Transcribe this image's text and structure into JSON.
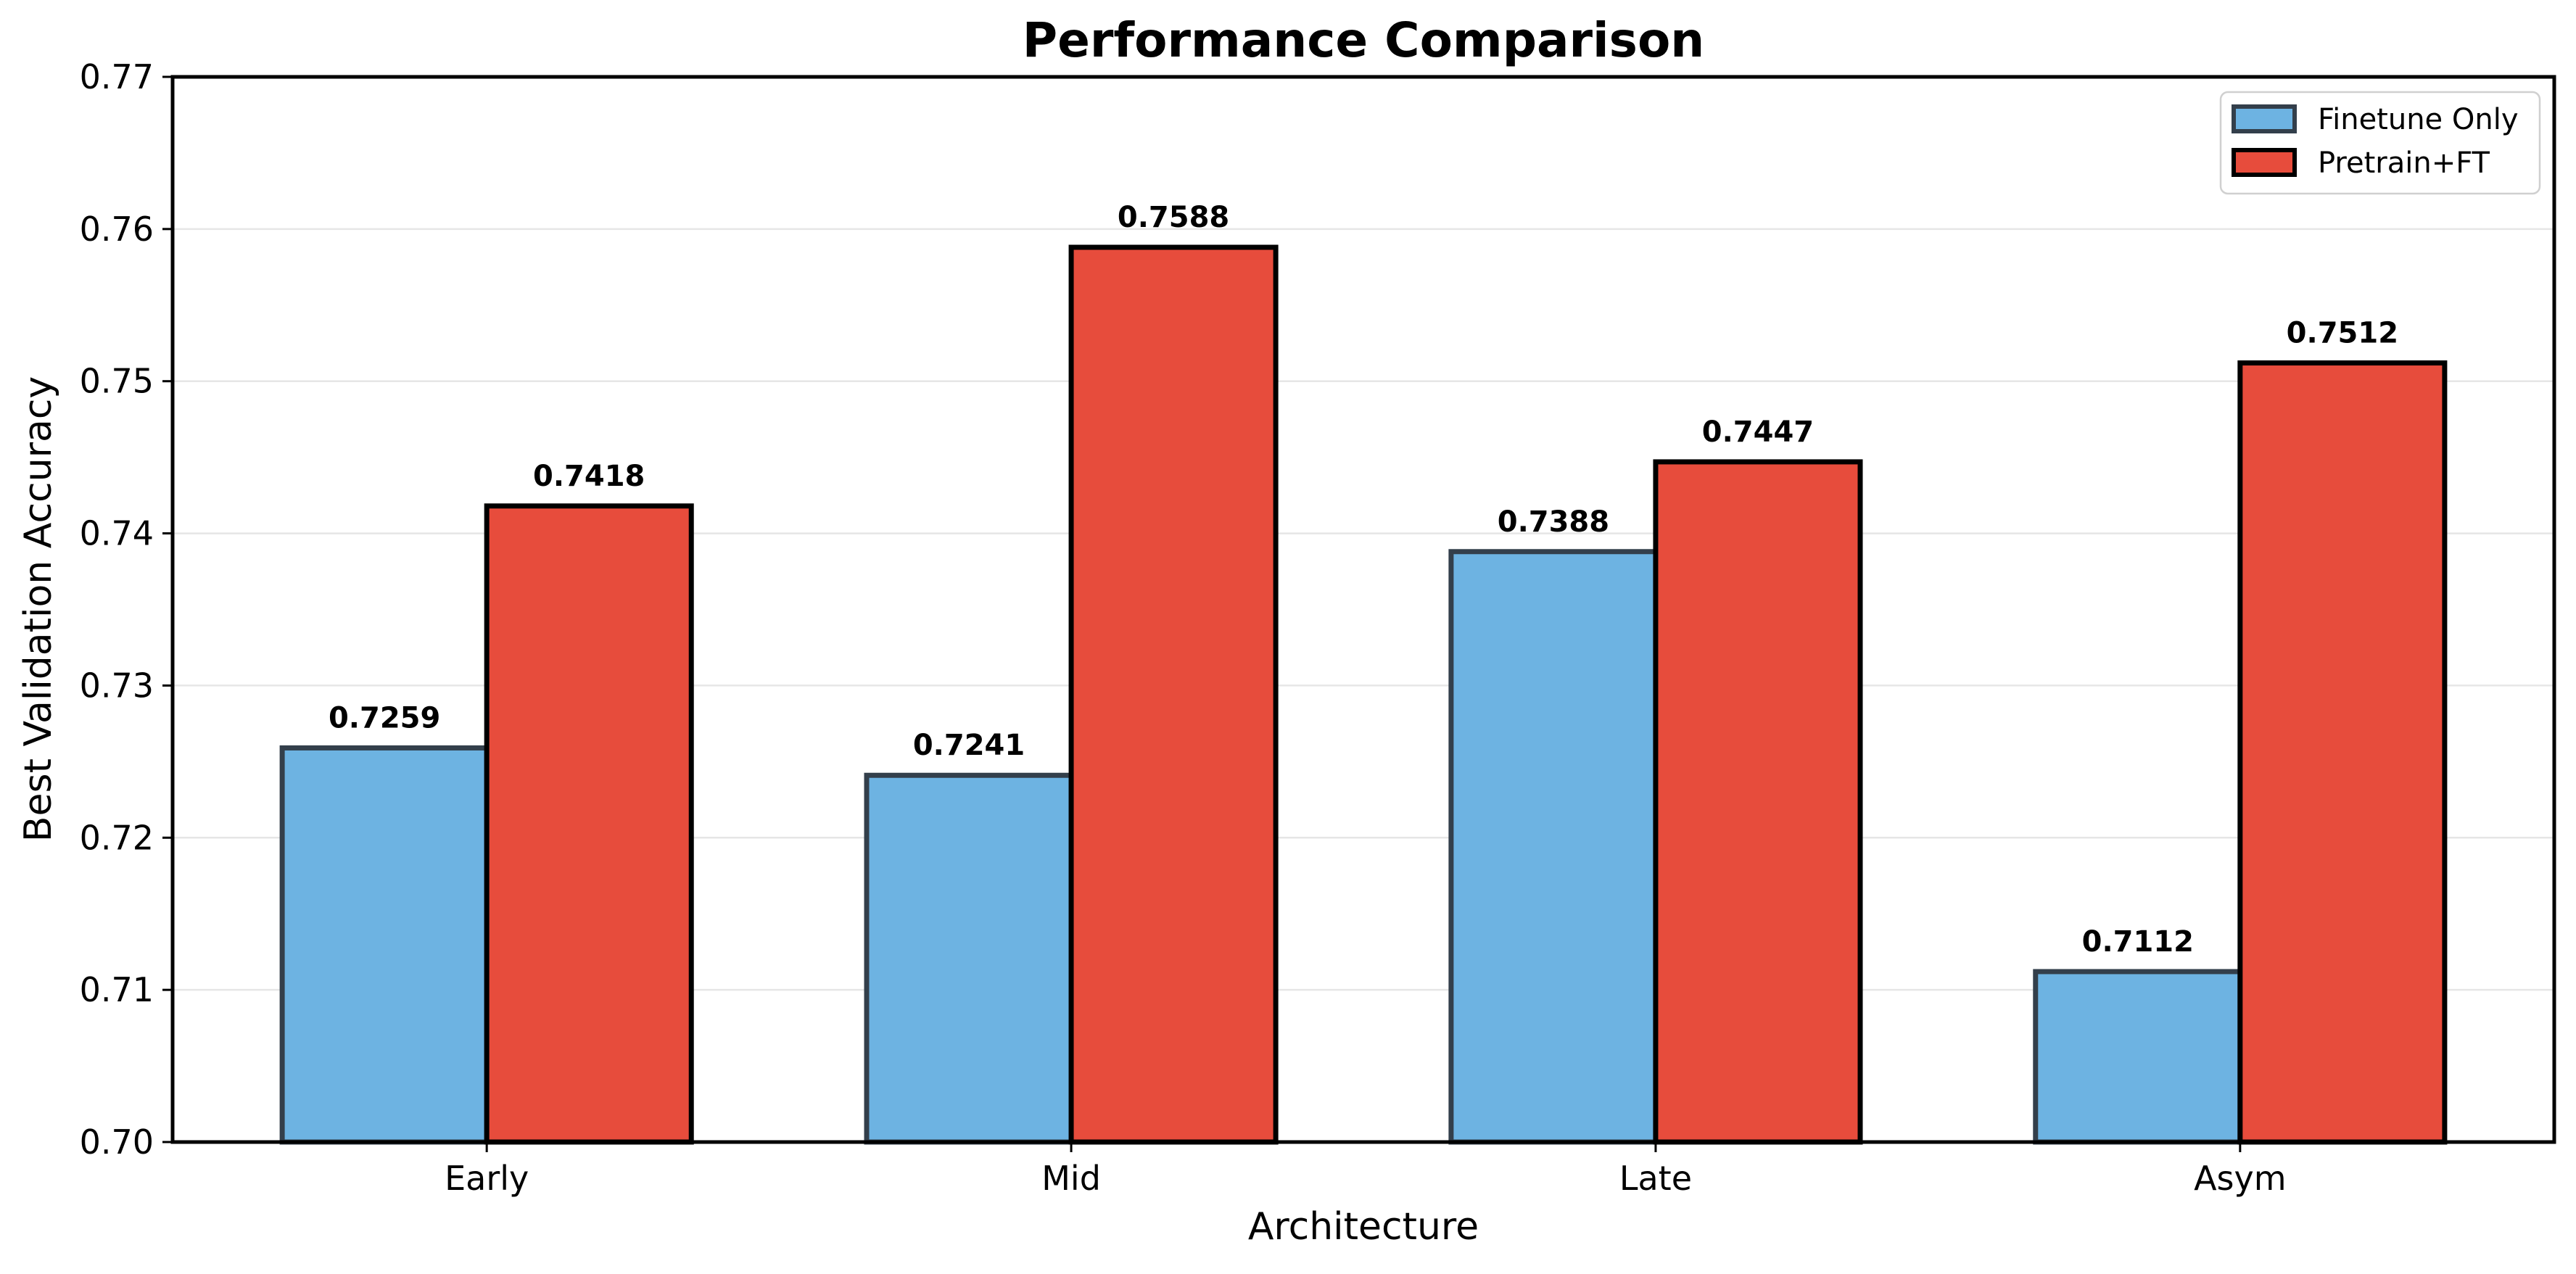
{
  "chart_data": {
    "type": "bar",
    "title": "Performance Comparison",
    "xlabel": "Architecture",
    "ylabel": "Best Validation Accuracy",
    "categories": [
      "Early",
      "Mid",
      "Late",
      "Asym"
    ],
    "series": [
      {
        "name": "Finetune Only",
        "values": [
          0.7259,
          0.7241,
          0.7388,
          0.7112
        ],
        "color": "#6db3e2",
        "edge": "#333f4b"
      },
      {
        "name": "Pretrain+FT",
        "values": [
          0.7418,
          0.7588,
          0.7447,
          0.7512
        ],
        "color": "#e74c3c",
        "edge": "#000000"
      }
    ],
    "value_labels": [
      [
        "0.7259",
        "0.7241",
        "0.7388",
        "0.7112"
      ],
      [
        "0.7418",
        "0.7588",
        "0.7447",
        "0.7512"
      ]
    ],
    "ylim": [
      0.7,
      0.77
    ],
    "yticks": [
      0.7,
      0.71,
      0.72,
      0.73,
      0.74,
      0.75,
      0.76,
      0.77
    ],
    "ytick_labels": [
      "0.70",
      "0.71",
      "0.72",
      "0.73",
      "0.74",
      "0.75",
      "0.76",
      "0.77"
    ],
    "grid": "horizontal",
    "legend_position": "top-right"
  }
}
